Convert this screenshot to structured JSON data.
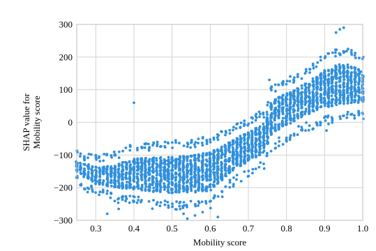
{
  "chart_data": {
    "type": "scatter",
    "xlabel": "Mobility score",
    "ylabel": [
      "SHAP value for",
      "Mobility score"
    ],
    "xlim": [
      0.25,
      1.0
    ],
    "ylim": [
      -300,
      300
    ],
    "xticks": [
      "0.3",
      "0.4",
      "0.5",
      "0.6",
      "0.7",
      "0.8",
      "0.9",
      "1.0"
    ],
    "yticks": [
      "300",
      "200",
      "100",
      "0",
      "−100",
      "−200",
      "−300"
    ],
    "xtick_values": [
      0.3,
      0.4,
      0.5,
      0.6,
      0.7,
      0.8,
      0.9,
      1.0
    ],
    "ytick_values": [
      300,
      200,
      100,
      0,
      -100,
      -200,
      -300
    ],
    "grid": true,
    "point_color": "#2f8fdd",
    "band_profile": [
      {
        "x": 0.25,
        "y_low": -160,
        "y_high": -110
      },
      {
        "x": 0.3,
        "y_low": -200,
        "y_high": -125
      },
      {
        "x": 0.35,
        "y_low": -215,
        "y_high": -115
      },
      {
        "x": 0.4,
        "y_low": -225,
        "y_high": -90
      },
      {
        "x": 0.45,
        "y_low": -235,
        "y_high": -85
      },
      {
        "x": 0.5,
        "y_low": -240,
        "y_high": -80
      },
      {
        "x": 0.55,
        "y_low": -240,
        "y_high": -78
      },
      {
        "x": 0.6,
        "y_low": -235,
        "y_high": -65
      },
      {
        "x": 0.65,
        "y_low": -175,
        "y_high": -40
      },
      {
        "x": 0.7,
        "y_low": -140,
        "y_high": -10
      },
      {
        "x": 0.74,
        "y_low": -115,
        "y_high": 15
      },
      {
        "x": 0.76,
        "y_low": -60,
        "y_high": 90
      },
      {
        "x": 0.8,
        "y_low": -30,
        "y_high": 110
      },
      {
        "x": 0.85,
        "y_low": 0,
        "y_high": 140
      },
      {
        "x": 0.9,
        "y_low": 20,
        "y_high": 185
      },
      {
        "x": 0.95,
        "y_low": 30,
        "y_high": 210
      },
      {
        "x": 1.0,
        "y_low": 40,
        "y_high": 180
      }
    ],
    "outliers": [
      {
        "x": 0.4,
        "y": 60
      },
      {
        "x": 0.39,
        "y": -70
      },
      {
        "x": 0.905,
        "y": -25
      },
      {
        "x": 0.94,
        "y": 285
      },
      {
        "x": 0.95,
        "y": 290
      },
      {
        "x": 0.93,
        "y": 275
      },
      {
        "x": 0.33,
        "y": -280
      },
      {
        "x": 0.36,
        "y": -265
      },
      {
        "x": 0.54,
        "y": -295
      },
      {
        "x": 0.56,
        "y": -285
      },
      {
        "x": 0.53,
        "y": -280
      },
      {
        "x": 0.62,
        "y": -290
      },
      {
        "x": 0.58,
        "y": -275
      },
      {
        "x": 0.26,
        "y": -155
      },
      {
        "x": 0.27,
        "y": -105
      },
      {
        "x": 0.755,
        "y": 130
      },
      {
        "x": 0.995,
        "y": 155
      },
      {
        "x": 0.8,
        "y": -55
      },
      {
        "x": 0.82,
        "y": -40
      }
    ]
  }
}
